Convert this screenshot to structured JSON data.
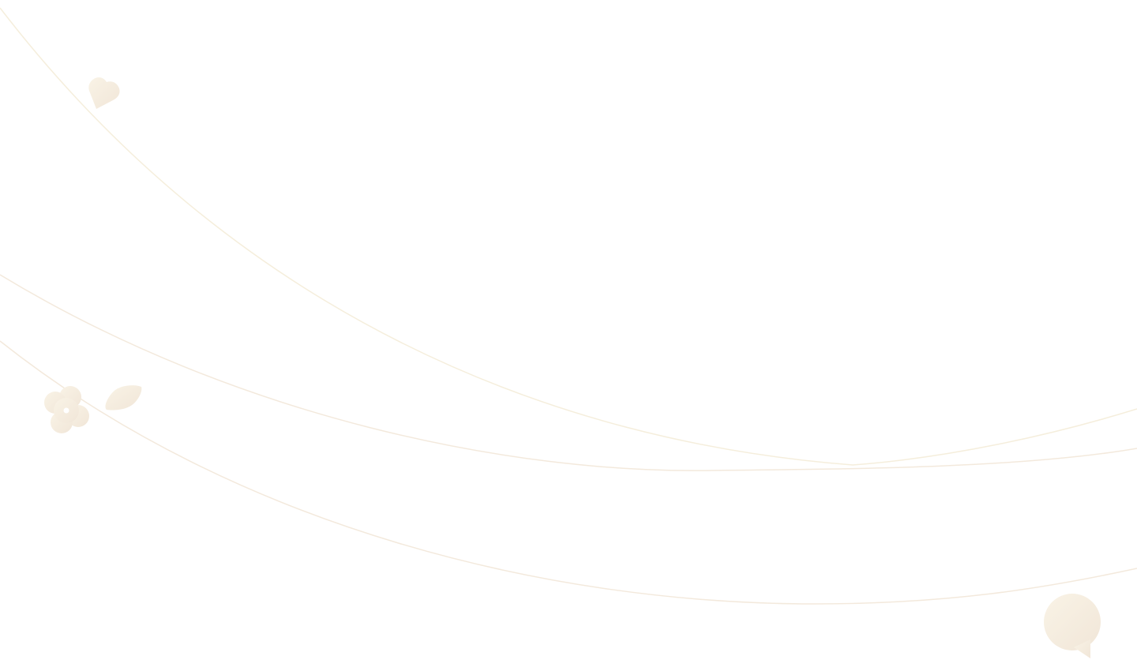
{
  "colors": {
    "background": "#ffffff",
    "line": "#f3e9dc",
    "shape_light": "#f8f1e4",
    "shape_dark": "#f1e6d8"
  },
  "decorations": [
    "heart-icon",
    "flower-icon",
    "leaf-icon"
  ],
  "chat_widget": {
    "icon": "chat-bubble-icon"
  }
}
